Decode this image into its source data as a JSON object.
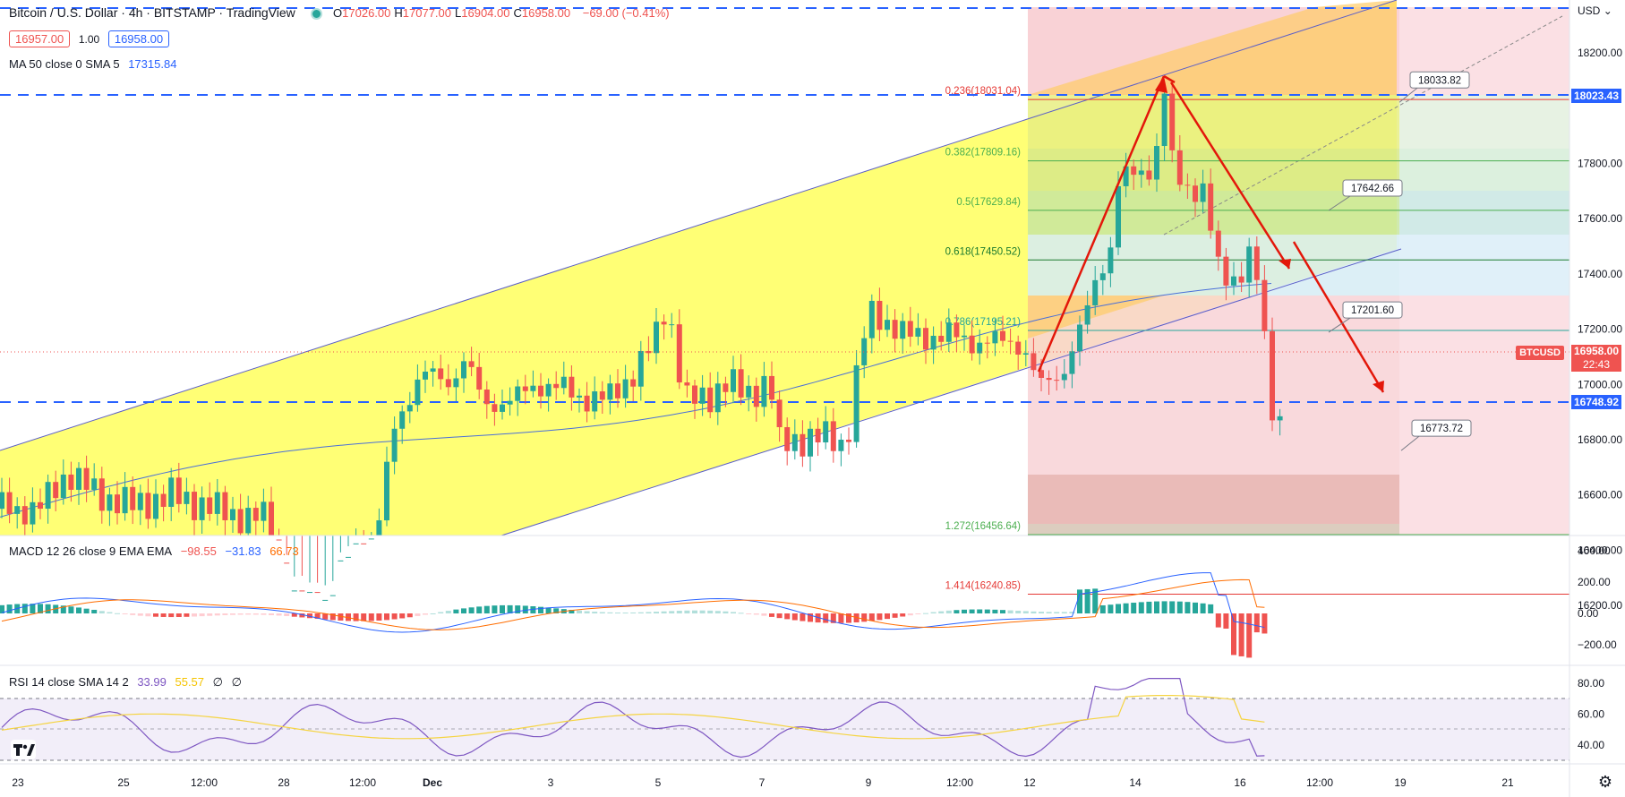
{
  "header": {
    "title": "Bitcoin / U.S. Dollar · 4h · BITSTAMP · TradingView",
    "ohlc": [
      {
        "k": "O",
        "v": "17026.00"
      },
      {
        "k": "H",
        "v": "17077.00"
      },
      {
        "k": "L",
        "v": "16904.00"
      },
      {
        "k": "C",
        "v": "16958.00"
      }
    ],
    "change": "−69.00 (−0.41%)",
    "bid": "16957.00",
    "spread": "1.00",
    "ask": "16958.00",
    "ma_label": "MA 50 close 0 SMA 5",
    "ma_value": "17315.84"
  },
  "macd_legend": {
    "label": "MACD 12 26 close 9 EMA EMA",
    "v1": "−98.55",
    "v2": "−31.83",
    "v3": "66.73"
  },
  "rsi_legend": {
    "label": "RSI 14 close SMA 14 2",
    "v1": "33.99",
    "v2": "55.57",
    "v3": "∅",
    "v4": "∅"
  },
  "price_axis": {
    "currency": "USD",
    "ticks": [
      "18200.00",
      "17800.00",
      "17600.00",
      "17400.00",
      "17200.00",
      "17000.00",
      "16800.00",
      "16600.00",
      "16400.00",
      "16200.00"
    ],
    "marker_top": "18023.43",
    "marker_bottom": "16748.92",
    "symbol_tag": "BTCUSD",
    "last_price": "16958.00",
    "countdown": "22:43"
  },
  "macd_axis": {
    "ticks": [
      "400.00",
      "200.00",
      "0.00",
      "−200.00"
    ]
  },
  "rsi_axis": {
    "ticks": [
      "80.00",
      "60.00",
      "40.00"
    ]
  },
  "time_axis": {
    "ticks": [
      "23",
      "25",
      "12:00",
      "28",
      "12:00",
      "Dec",
      "3",
      "5",
      "7",
      "9",
      "12:00",
      "12",
      "14",
      "16",
      "12:00",
      "19",
      "21"
    ]
  },
  "fib_levels": [
    {
      "label": "0.236(18031.04)",
      "price": 18031.04,
      "color": "#e53935"
    },
    {
      "label": "0.382(17809.16)",
      "price": 17809.16,
      "color": "#4caf50"
    },
    {
      "label": "0.5(17629.84)",
      "price": 17629.84,
      "color": "#4caf50"
    },
    {
      "label": "0.618(17450.52)",
      "price": 17450.52,
      "color": "#1b7a2e"
    },
    {
      "label": "0.786(17195.21)",
      "price": 17195.21,
      "color": "#26a69a"
    },
    {
      "label": "1.272(16456.64)",
      "price": 16456.64,
      "color": "#4caf50"
    },
    {
      "label": "1.414(16240.85)",
      "price": 16240.85,
      "color": "#e53935"
    }
  ],
  "callouts": [
    {
      "text": "18033.82",
      "price": 18033.82
    },
    {
      "text": "17642.66",
      "price": 17642.66
    },
    {
      "text": "17201.60",
      "price": 17201.6
    },
    {
      "text": "16773.72",
      "price": 16773.72
    }
  ],
  "colors": {
    "up": "#26a69a",
    "down": "#ef5350",
    "accent": "#2962ff",
    "arrow": "#e3170a",
    "channel": "#ffff66"
  }
}
